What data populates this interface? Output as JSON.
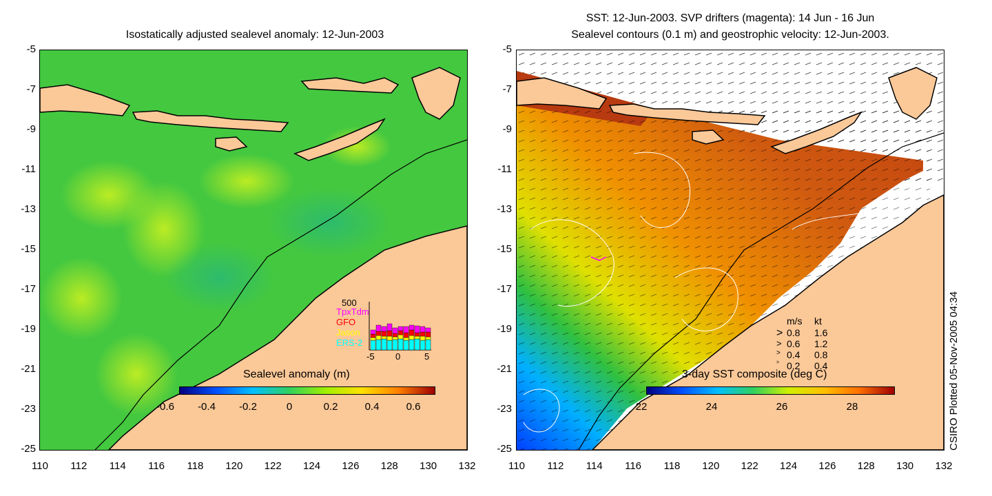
{
  "left_panel": {
    "title": "Isostatically adjusted sealevel anomaly: 12-Jun-2003",
    "colorbar_label": "Sealevel anomaly (m)",
    "colorbar_ticks": [
      "-0.6",
      "-0.4",
      "-0.2",
      "0",
      "0.2",
      "0.4",
      "0.6"
    ],
    "colorbar_colors": [
      "#00007f",
      "#0050ff",
      "#00c0ff",
      "#30d060",
      "#a0f000",
      "#ffe000",
      "#ff8000",
      "#a00000"
    ],
    "sea_color": "#3fcc40",
    "land_color": "#fbc898"
  },
  "right_panel": {
    "title_line1": "SST: 12-Jun-2003. SVP drifters (magenta): 14 Jun - 16 Jun",
    "title_line2": "Sealevel contours (0.1 m) and geostrophic velocity: 12-Jun-2003.",
    "colorbar_label": "3-day SST composite (deg C)",
    "colorbar_ticks": [
      "22",
      "24",
      "26",
      "28"
    ],
    "colorbar_colors": [
      "#00007f",
      "#0050ff",
      "#00c0ff",
      "#30d060",
      "#d0f000",
      "#ffc000",
      "#ff7000",
      "#a00000"
    ],
    "velocity_legend": {
      "header_ms": "m/s",
      "header_kt": "kt",
      "rows": [
        {
          "ms": "0.8",
          "kt": "1.6"
        },
        {
          "ms": "0.6",
          "kt": "1.2"
        },
        {
          "ms": "0.4",
          "kt": "0.8"
        },
        {
          "ms": "0.2",
          "kt": "0.4"
        }
      ]
    }
  },
  "axes": {
    "y_ticks": [
      "-5",
      "-7",
      "-9",
      "-11",
      "-13",
      "-15",
      "-17",
      "-19",
      "-21",
      "-23",
      "-25"
    ],
    "x_ticks": [
      "110",
      "112",
      "114",
      "116",
      "118",
      "120",
      "122",
      "124",
      "126",
      "128",
      "130",
      "132"
    ]
  },
  "histogram": {
    "max_label": "500",
    "legend": [
      {
        "name": "TpxTdm",
        "color": "#ff00ff"
      },
      {
        "name": "GFO",
        "color": "#ff0000"
      },
      {
        "name": "Jason",
        "color": "#ffff00"
      },
      {
        "name": "ERS-2",
        "color": "#00ffff"
      }
    ],
    "x_ticks": [
      "-5",
      "0",
      "5"
    ]
  },
  "credit": "CSIRO Plotted 05-Nov-2005 04:34"
}
